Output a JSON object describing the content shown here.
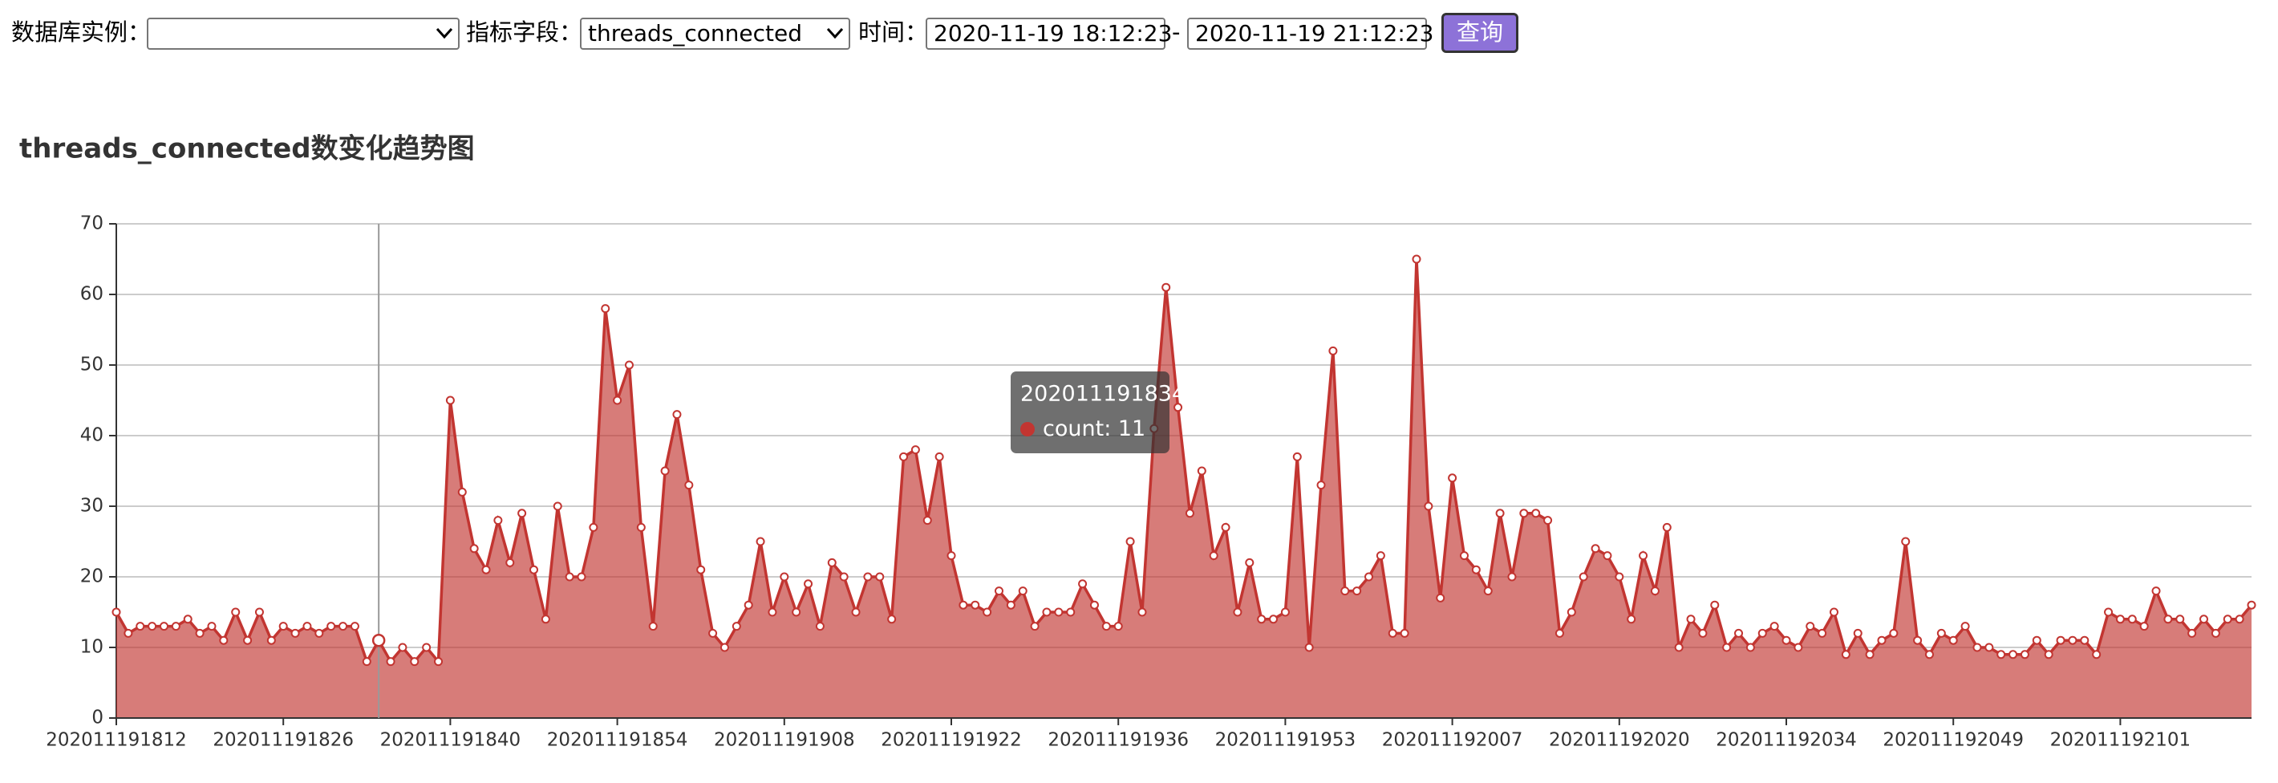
{
  "form": {
    "instance_label": "数据库实例：",
    "metric_label": "指标字段：",
    "metric_value": "threads_connected",
    "time_label": "时间：",
    "start": "2020-11-19 18:12:23",
    "separator": "-",
    "end": "2020-11-19 21:12:23",
    "button": "查询"
  },
  "chart_data": {
    "type": "line",
    "area": true,
    "title": "threads_connected数变化趋势图",
    "categories": [
      "202011191812",
      null,
      null,
      null,
      null,
      null,
      null,
      null,
      null,
      null,
      null,
      null,
      null,
      null,
      "202011191826",
      null,
      null,
      null,
      null,
      null,
      null,
      null,
      null,
      null,
      null,
      null,
      null,
      null,
      "202011191840",
      null,
      null,
      null,
      null,
      null,
      null,
      null,
      null,
      null,
      null,
      null,
      null,
      null,
      "202011191854",
      null,
      null,
      null,
      null,
      null,
      null,
      null,
      null,
      null,
      null,
      null,
      null,
      null,
      "202011191908",
      null,
      null,
      null,
      null,
      null,
      null,
      null,
      null,
      null,
      null,
      null,
      null,
      null,
      "202011191922",
      null,
      null,
      null,
      null,
      null,
      null,
      null,
      null,
      null,
      null,
      null,
      null,
      null,
      "202011191936",
      null,
      null,
      null,
      null,
      null,
      null,
      null,
      null,
      null,
      null,
      null,
      null,
      null,
      "202011191953",
      null,
      null,
      null,
      null,
      null,
      null,
      null,
      null,
      null,
      null,
      null,
      null,
      null,
      "202011192007",
      null,
      null,
      null,
      null,
      null,
      null,
      null,
      null,
      null,
      null,
      null,
      null,
      null,
      "202011192020",
      null,
      null,
      null,
      null,
      null,
      null,
      null,
      null,
      null,
      null,
      null,
      null,
      null,
      "202011192034",
      null,
      null,
      null,
      null,
      null,
      null,
      null,
      null,
      null,
      null,
      null,
      null,
      null,
      "202011192049",
      null,
      null,
      null,
      null,
      null,
      null,
      null,
      null,
      null,
      null,
      null,
      null,
      null,
      "202011192101",
      null,
      null,
      null,
      null,
      null,
      null,
      null,
      null,
      null,
      null,
      null
    ],
    "series": [
      {
        "name": "count",
        "color": "#c23531",
        "values": [
          15,
          12,
          13,
          13,
          13,
          13,
          14,
          12,
          13,
          11,
          15,
          11,
          15,
          11,
          13,
          12,
          13,
          12,
          13,
          13,
          13,
          8,
          11,
          8,
          10,
          8,
          10,
          8,
          45,
          32,
          24,
          21,
          28,
          22,
          29,
          21,
          14,
          30,
          20,
          20,
          27,
          58,
          45,
          50,
          27,
          13,
          35,
          43,
          33,
          21,
          12,
          10,
          13,
          16,
          25,
          15,
          20,
          15,
          19,
          13,
          22,
          20,
          15,
          20,
          20,
          14,
          37,
          38,
          28,
          37,
          23,
          16,
          16,
          15,
          18,
          16,
          18,
          13,
          15,
          15,
          15,
          19,
          16,
          13,
          13,
          25,
          15,
          41,
          61,
          44,
          29,
          35,
          23,
          27,
          15,
          22,
          14,
          14,
          15,
          37,
          10,
          33,
          52,
          18,
          18,
          20,
          23,
          12,
          12,
          65,
          30,
          17,
          34,
          23,
          21,
          18,
          29,
          20,
          29,
          29,
          28,
          12,
          15,
          20,
          24,
          23,
          20,
          14,
          23,
          18,
          27,
          10,
          14,
          12,
          16,
          10,
          12,
          10,
          12,
          13,
          11,
          10,
          13,
          12,
          15,
          9,
          12,
          9,
          11,
          12,
          25,
          11,
          9,
          12,
          11,
          13,
          10,
          10,
          9,
          9,
          9,
          11,
          9,
          11,
          11,
          11,
          9,
          15,
          14,
          14,
          13,
          18,
          14,
          14,
          12,
          14,
          12,
          14,
          14,
          16
        ]
      }
    ],
    "ylim": [
      0,
      70
    ],
    "yticks": [
      0,
      10,
      20,
      30,
      40,
      50,
      60,
      70
    ],
    "grid": true,
    "tooltip": {
      "title": "202011191834",
      "value": 11
    }
  }
}
